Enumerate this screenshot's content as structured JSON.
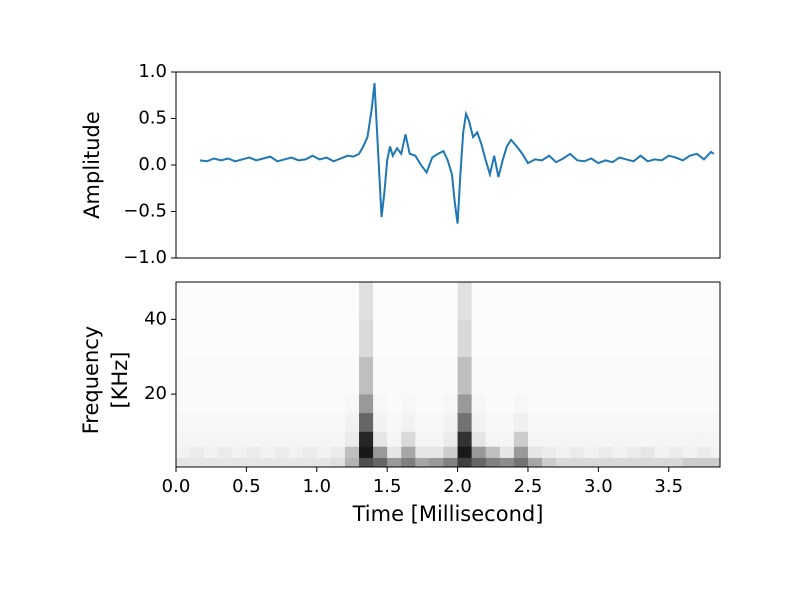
{
  "chart_data": [
    {
      "type": "line",
      "ylabel": "Amplitude",
      "color": "#1f77b4",
      "xlim": [
        0,
        3.864
      ],
      "ylim": [
        -1,
        1
      ],
      "yticks": [
        {
          "value": 1,
          "label": "1.0"
        },
        0.5,
        {
          "value": 0,
          "label": "0.0"
        },
        {
          "value": -0.5,
          "label": "−0.5"
        },
        {
          "value": -1,
          "label": "−1.0"
        }
      ],
      "x": [
        0.17,
        0.22,
        0.27,
        0.32,
        0.37,
        0.42,
        0.47,
        0.52,
        0.57,
        0.62,
        0.67,
        0.72,
        0.77,
        0.82,
        0.87,
        0.92,
        0.97,
        1.02,
        1.07,
        1.12,
        1.17,
        1.22,
        1.26,
        1.3,
        1.33,
        1.36,
        1.39,
        1.41,
        1.43,
        1.46,
        1.48,
        1.5,
        1.52,
        1.54,
        1.57,
        1.6,
        1.63,
        1.66,
        1.7,
        1.74,
        1.78,
        1.82,
        1.86,
        1.9,
        1.93,
        1.96,
        1.98,
        2.0,
        2.02,
        2.04,
        2.06,
        2.08,
        2.11,
        2.14,
        2.17,
        2.2,
        2.23,
        2.26,
        2.29,
        2.32,
        2.35,
        2.38,
        2.42,
        2.46,
        2.5,
        2.55,
        2.6,
        2.65,
        2.7,
        2.75,
        2.8,
        2.85,
        2.9,
        2.95,
        3.0,
        3.05,
        3.1,
        3.15,
        3.2,
        3.25,
        3.3,
        3.35,
        3.4,
        3.45,
        3.5,
        3.55,
        3.6,
        3.65,
        3.7,
        3.75,
        3.8,
        3.82
      ],
      "values": [
        0.05,
        0.04,
        0.07,
        0.05,
        0.07,
        0.04,
        0.06,
        0.08,
        0.05,
        0.07,
        0.09,
        0.04,
        0.06,
        0.08,
        0.05,
        0.06,
        0.1,
        0.06,
        0.08,
        0.04,
        0.07,
        0.1,
        0.09,
        0.12,
        0.2,
        0.3,
        0.6,
        0.88,
        0.3,
        -0.56,
        -0.3,
        0.05,
        0.2,
        0.1,
        0.18,
        0.12,
        0.33,
        0.12,
        0.1,
        0.0,
        -0.08,
        0.08,
        0.12,
        0.15,
        0.05,
        -0.1,
        -0.4,
        -0.63,
        -0.1,
        0.35,
        0.55,
        0.48,
        0.3,
        0.35,
        0.22,
        0.05,
        -0.1,
        0.1,
        -0.13,
        0.05,
        0.2,
        0.27,
        0.2,
        0.12,
        0.02,
        0.06,
        0.05,
        0.1,
        0.03,
        0.07,
        0.12,
        0.05,
        0.04,
        0.07,
        0.02,
        0.05,
        0.03,
        0.08,
        0.06,
        0.04,
        0.1,
        0.04,
        0.06,
        0.05,
        0.1,
        0.08,
        0.05,
        0.1,
        0.12,
        0.06,
        0.14,
        0.12
      ]
    },
    {
      "type": "heatmap",
      "ylabel": [
        "Frequency",
        "[KHz]"
      ],
      "xlabel": "Time [Millisecond]",
      "cmap": "Greys",
      "xlim": [
        0,
        3.864
      ],
      "ylim": [
        0.5,
        50
      ],
      "xticks": [
        {
          "value": 0,
          "label": "0.0"
        },
        0.5,
        {
          "value": 1,
          "label": "1.0"
        },
        1.5,
        {
          "value": 2,
          "label": "2.0"
        },
        2.5,
        {
          "value": 3,
          "label": "3.0"
        },
        3.5
      ],
      "yticks": [
        20,
        40
      ],
      "x_edges": [
        0,
        0.1,
        0.2,
        0.3,
        0.4,
        0.5,
        0.6,
        0.7,
        0.8,
        0.9,
        1.0,
        1.1,
        1.2,
        1.3,
        1.4,
        1.5,
        1.6,
        1.7,
        1.8,
        1.9,
        2.0,
        2.1,
        2.2,
        2.3,
        2.4,
        2.5,
        2.6,
        2.7,
        2.8,
        2.9,
        3.0,
        3.1,
        3.2,
        3.3,
        3.4,
        3.5,
        3.6,
        3.7,
        3.8,
        3.9
      ],
      "y_edges": [
        0.5,
        3,
        6,
        10,
        15,
        20,
        30,
        40,
        50
      ],
      "z": [
        [
          0.1,
          0.1,
          0.1,
          0.1,
          0.1,
          0.1,
          0.1,
          0.1,
          0.1,
          0.1,
          0.1,
          0.12,
          0.3,
          0.7,
          0.6,
          0.4,
          0.5,
          0.35,
          0.4,
          0.5,
          0.75,
          0.6,
          0.5,
          0.45,
          0.55,
          0.35,
          0.2,
          0.15,
          0.15,
          0.15,
          0.15,
          0.15,
          0.15,
          0.15,
          0.15,
          0.15,
          0.2,
          0.2,
          0.2
        ],
        [
          0.05,
          0.08,
          0.05,
          0.08,
          0.05,
          0.08,
          0.05,
          0.08,
          0.05,
          0.08,
          0.05,
          0.08,
          0.25,
          0.9,
          0.4,
          0.1,
          0.35,
          0.1,
          0.1,
          0.2,
          0.9,
          0.4,
          0.25,
          0.1,
          0.4,
          0.1,
          0.08,
          0.05,
          0.08,
          0.05,
          0.08,
          0.05,
          0.08,
          0.1,
          0.05,
          0.08,
          0.05,
          0.08,
          0.05
        ],
        [
          0.04,
          0.04,
          0.04,
          0.04,
          0.04,
          0.04,
          0.04,
          0.04,
          0.04,
          0.04,
          0.04,
          0.04,
          0.08,
          0.85,
          0.1,
          0.04,
          0.15,
          0.04,
          0.04,
          0.08,
          0.8,
          0.1,
          0.04,
          0.04,
          0.2,
          0.04,
          0.04,
          0.04,
          0.04,
          0.04,
          0.04,
          0.04,
          0.04,
          0.04,
          0.04,
          0.04,
          0.04,
          0.04,
          0.04
        ],
        [
          0.03,
          0.03,
          0.03,
          0.03,
          0.03,
          0.03,
          0.03,
          0.03,
          0.03,
          0.03,
          0.03,
          0.03,
          0.05,
          0.6,
          0.05,
          0.03,
          0.05,
          0.03,
          0.03,
          0.05,
          0.55,
          0.05,
          0.03,
          0.03,
          0.06,
          0.03,
          0.03,
          0.03,
          0.03,
          0.03,
          0.03,
          0.03,
          0.03,
          0.03,
          0.03,
          0.03,
          0.03,
          0.03,
          0.03
        ],
        [
          0.02,
          0.02,
          0.02,
          0.02,
          0.02,
          0.02,
          0.02,
          0.02,
          0.02,
          0.02,
          0.02,
          0.02,
          0.03,
          0.4,
          0.03,
          0.02,
          0.03,
          0.02,
          0.02,
          0.03,
          0.4,
          0.03,
          0.02,
          0.02,
          0.03,
          0.02,
          0.02,
          0.02,
          0.02,
          0.02,
          0.02,
          0.02,
          0.02,
          0.02,
          0.02,
          0.02,
          0.02,
          0.02,
          0.02
        ],
        [
          0.02,
          0.02,
          0.02,
          0.02,
          0.02,
          0.02,
          0.02,
          0.02,
          0.02,
          0.02,
          0.02,
          0.02,
          0.02,
          0.25,
          0.02,
          0.02,
          0.02,
          0.02,
          0.02,
          0.02,
          0.25,
          0.02,
          0.02,
          0.02,
          0.02,
          0.02,
          0.02,
          0.02,
          0.02,
          0.02,
          0.02,
          0.02,
          0.02,
          0.02,
          0.02,
          0.02,
          0.02,
          0.02,
          0.02
        ],
        [
          0.01,
          0.01,
          0.01,
          0.01,
          0.01,
          0.01,
          0.01,
          0.01,
          0.01,
          0.01,
          0.01,
          0.01,
          0.01,
          0.15,
          0.01,
          0.01,
          0.01,
          0.01,
          0.01,
          0.01,
          0.15,
          0.01,
          0.01,
          0.01,
          0.01,
          0.01,
          0.01,
          0.01,
          0.01,
          0.01,
          0.01,
          0.01,
          0.01,
          0.01,
          0.01,
          0.01,
          0.01,
          0.01,
          0.01
        ],
        [
          0.01,
          0.01,
          0.01,
          0.01,
          0.01,
          0.01,
          0.01,
          0.01,
          0.01,
          0.01,
          0.01,
          0.01,
          0.01,
          0.12,
          0.01,
          0.01,
          0.01,
          0.01,
          0.01,
          0.01,
          0.12,
          0.01,
          0.01,
          0.01,
          0.01,
          0.01,
          0.01,
          0.01,
          0.01,
          0.01,
          0.01,
          0.01,
          0.01,
          0.01,
          0.01,
          0.01,
          0.01,
          0.01,
          0.01
        ]
      ]
    }
  ]
}
